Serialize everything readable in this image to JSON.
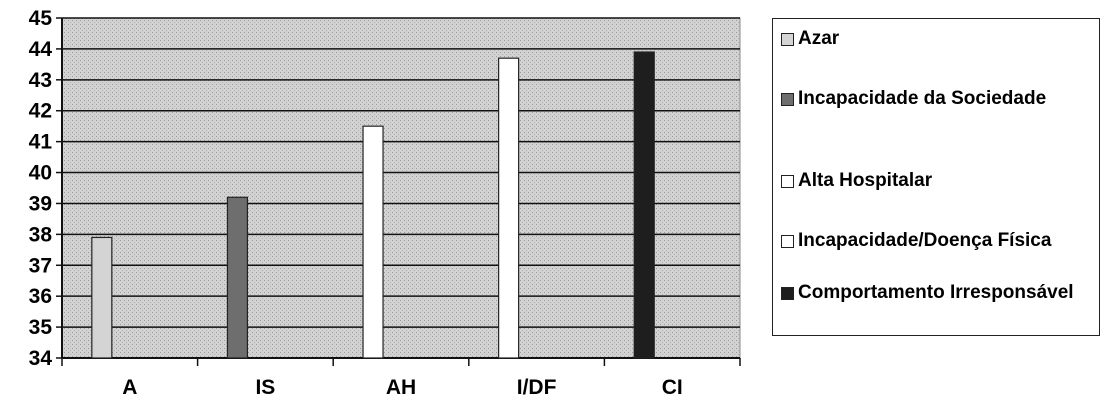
{
  "chart_data": {
    "type": "bar",
    "categories": [
      "A",
      "IS",
      "AH",
      "I/DF",
      "CI"
    ],
    "series": [
      {
        "name": "Azar",
        "values": [
          37.9,
          null,
          null,
          null,
          null
        ],
        "color": "#d4d4d4"
      },
      {
        "name": "Incapacidade da Sociedade",
        "values": [
          null,
          39.2,
          null,
          null,
          null
        ],
        "color": "#6e6e6e"
      },
      {
        "name": "Alta Hospitalar",
        "values": [
          null,
          null,
          41.5,
          null,
          null
        ],
        "color": "#ffffff"
      },
      {
        "name": "Incapacidade/Doença Física",
        "values": [
          null,
          null,
          null,
          43.7,
          null
        ],
        "color": "#ffffff"
      },
      {
        "name": "Comportamento Irresponsável",
        "values": [
          null,
          null,
          null,
          null,
          43.9
        ],
        "color": "#1e1e1e"
      }
    ],
    "values": [
      37.9,
      39.2,
      41.5,
      43.7,
      43.9
    ],
    "title": "",
    "xlabel": "",
    "ylabel": "",
    "ylim": [
      34,
      45
    ],
    "yticks": [
      34,
      35,
      36,
      37,
      38,
      39,
      40,
      41,
      42,
      43,
      44,
      45
    ],
    "grid": true,
    "legend_position": "right",
    "plot_background": "#c8c8c8"
  }
}
